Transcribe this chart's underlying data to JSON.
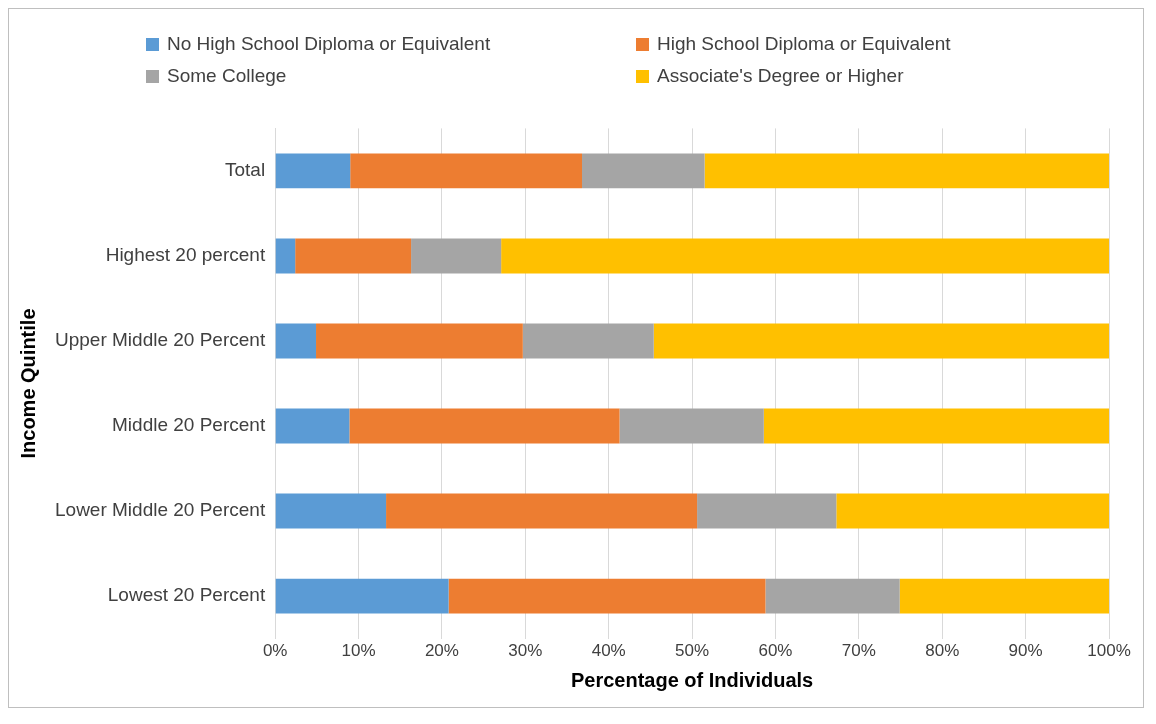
{
  "chart_data": {
    "type": "bar",
    "orientation": "horizontal",
    "stacked": true,
    "xlabel": "Percentage of Individuals",
    "ylabel": "Income Quintile",
    "categories": [
      "Total",
      "Highest 20 percent",
      "Upper Middle 20 Percent",
      "Middle 20 Percent",
      "Lower Middle 20 Percent",
      "Lowest 20 Percent"
    ],
    "series": [
      {
        "name": "No High School Diploma or Equivalent",
        "color": "#5b9bd5",
        "values": [
          9,
          2.4,
          4.9,
          8.9,
          13.3,
          20.8
        ]
      },
      {
        "name": "High School Diploma or Equivalent",
        "color": "#ed7d31",
        "values": [
          27.8,
          13.9,
          24.8,
          32.4,
          37.3,
          38
        ]
      },
      {
        "name": "Some College",
        "color": "#a5a5a5",
        "values": [
          14.7,
          10.8,
          15.7,
          17.3,
          16.7,
          16.1
        ]
      },
      {
        "name": "Associate's Degree or Higher",
        "color": "#ffc000",
        "values": [
          48.5,
          72.9,
          54.6,
          41.4,
          32.7,
          25.1
        ]
      }
    ],
    "xlim": [
      0,
      100
    ],
    "xticks": [
      {
        "value": 0,
        "label": "0%"
      },
      {
        "value": 10,
        "label": "10%"
      },
      {
        "value": 20,
        "label": "20%"
      },
      {
        "value": 30,
        "label": "30%"
      },
      {
        "value": 40,
        "label": "40%"
      },
      {
        "value": 50,
        "label": "50%"
      },
      {
        "value": 60,
        "label": "60%"
      },
      {
        "value": 70,
        "label": "70%"
      },
      {
        "value": 80,
        "label": "80%"
      },
      {
        "value": 90,
        "label": "90%"
      },
      {
        "value": 100,
        "label": "100%"
      }
    ],
    "grid": "x",
    "legend": "top"
  }
}
